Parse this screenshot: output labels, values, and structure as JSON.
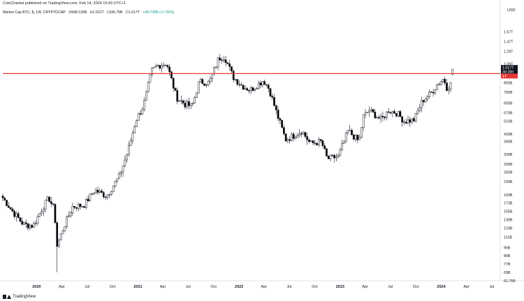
{
  "header": {
    "published": "CoinChartist published on TradingView.com, Feb 14, 2024 15:43 UTC+1"
  },
  "legend": {
    "symbol": "Market Cap BTC, $, 1W, CRYPTOCAP",
    "open": "O948.126B",
    "high": "H1.021T",
    "low": "L936.75B",
    "close": "C1.017T",
    "change": "+68.709B (+7.25%)"
  },
  "footer": {
    "brand": "TradingView"
  },
  "chart_data": {
    "type": "candlestick",
    "title": "",
    "currency_label": "USD",
    "y_scale": "log",
    "ylim": [
      61.75,
      2000
    ],
    "y_ticks": [
      "61.75B",
      "69B",
      "77B",
      "86B",
      "96B",
      "110B",
      "124B",
      "139B",
      "155B",
      "173B",
      "193B",
      "230B",
      "260B",
      "290B",
      "330B",
      "390B",
      "430B",
      "510B",
      "570B",
      "650B",
      "750B",
      "850B",
      "1.09T",
      "1.29T",
      "1.47T",
      "1.67T"
    ],
    "y_tick_values": [
      61.75,
      69,
      77,
      86,
      96,
      110,
      124,
      139,
      155,
      173,
      193,
      230,
      260,
      290,
      330,
      390,
      430,
      510,
      570,
      650,
      750,
      850,
      1090,
      1290,
      1470,
      1670
    ],
    "x_ticks": [
      "2020",
      "Apr",
      "Jul",
      "Oct",
      "2021",
      "Apr",
      "Jul",
      "Oct",
      "2022",
      "Apr",
      "Jul",
      "Oct",
      "2023",
      "Apr",
      "Jul",
      "Oct",
      "2024",
      "Apr",
      "Jul"
    ],
    "x_tick_dates": [
      "2020-01-01",
      "2020-04-01",
      "2020-07-01",
      "2020-10-01",
      "2021-01-01",
      "2021-04-01",
      "2021-07-01",
      "2021-10-01",
      "2022-01-01",
      "2022-04-01",
      "2022-07-01",
      "2022-10-01",
      "2023-01-01",
      "2023-04-01",
      "2023-07-01",
      "2023-10-01",
      "2024-01-01",
      "2024-04-01",
      "2024-07-01"
    ],
    "xlim": [
      "2019-09-01",
      "2024-08-01"
    ],
    "bold_tick_labels": [
      "2020",
      "2021",
      "2022",
      "2023",
      "2024"
    ],
    "resistance_line": {
      "value": 960,
      "color": "#e53935"
    },
    "price_labels": [
      {
        "text": "1.017T",
        "value": 1017,
        "color": "#131722"
      },
      {
        "text": "3d 16h",
        "value": 990,
        "color": "#131722"
      },
      {
        "text": "1T",
        "value": 960,
        "color": "#e53935"
      }
    ],
    "candle_up_color": "#ffffff",
    "candle_down_color": "#000000",
    "weekly_close_anchors": [
      [
        "2019-09-01",
        185
      ],
      [
        "2019-10-10",
        152
      ],
      [
        "2019-11-15",
        130
      ],
      [
        "2019-12-20",
        128
      ],
      [
        "2020-01-20",
        160
      ],
      [
        "2020-02-14",
        185
      ],
      [
        "2020-03-05",
        158
      ],
      [
        "2020-03-15",
        98
      ],
      [
        "2020-04-10",
        128
      ],
      [
        "2020-05-10",
        165
      ],
      [
        "2020-06-20",
        168
      ],
      [
        "2020-07-28",
        205
      ],
      [
        "2020-09-10",
        190
      ],
      [
        "2020-10-25",
        245
      ],
      [
        "2020-11-25",
        340
      ],
      [
        "2020-12-25",
        520
      ],
      [
        "2021-01-20",
        620
      ],
      [
        "2021-02-20",
        1000
      ],
      [
        "2021-03-15",
        1070
      ],
      [
        "2021-04-15",
        1100
      ],
      [
        "2021-05-20",
        700
      ],
      [
        "2021-06-20",
        640
      ],
      [
        "2021-07-15",
        620
      ],
      [
        "2021-08-10",
        860
      ],
      [
        "2021-09-15",
        850
      ],
      [
        "2021-10-20",
        1180
      ],
      [
        "2021-11-10",
        1200
      ],
      [
        "2021-12-10",
        920
      ],
      [
        "2022-01-10",
        820
      ],
      [
        "2022-02-10",
        770
      ],
      [
        "2022-03-30",
        880
      ],
      [
        "2022-04-20",
        780
      ],
      [
        "2022-05-15",
        580
      ],
      [
        "2022-06-18",
        400
      ],
      [
        "2022-07-15",
        420
      ],
      [
        "2022-08-15",
        450
      ],
      [
        "2022-09-15",
        380
      ],
      [
        "2022-10-25",
        390
      ],
      [
        "2022-11-15",
        310
      ],
      [
        "2022-12-25",
        320
      ],
      [
        "2023-01-30",
        450
      ],
      [
        "2023-03-10",
        390
      ],
      [
        "2023-03-25",
        540
      ],
      [
        "2023-04-15",
        590
      ],
      [
        "2023-05-30",
        520
      ],
      [
        "2023-06-25",
        590
      ],
      [
        "2023-07-25",
        570
      ],
      [
        "2023-08-20",
        510
      ],
      [
        "2023-09-25",
        520
      ],
      [
        "2023-10-25",
        670
      ],
      [
        "2023-11-25",
        740
      ],
      [
        "2023-12-20",
        840
      ],
      [
        "2024-01-10",
        900
      ],
      [
        "2024-01-22",
        790
      ],
      [
        "2024-02-05",
        840
      ],
      [
        "2024-02-14",
        1017
      ]
    ]
  }
}
